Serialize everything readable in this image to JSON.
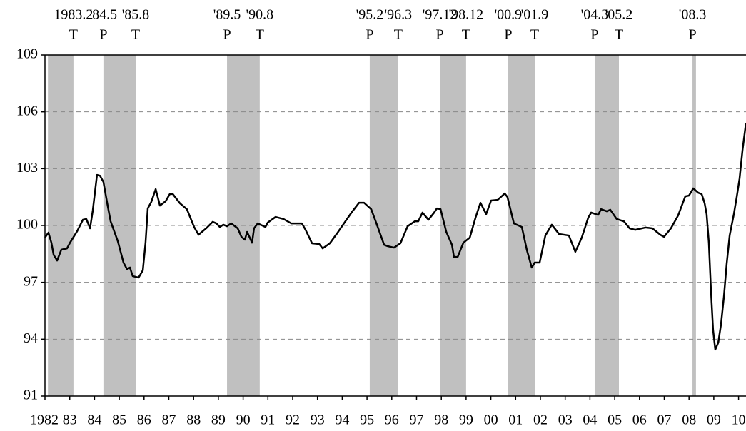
{
  "chart_data": {
    "type": "line",
    "color": "#000000",
    "band_color": "#c0c0c0",
    "grid": true,
    "xlim": [
      1982,
      2010.3
    ],
    "ylim": [
      91,
      109
    ],
    "yticks": [
      91,
      94,
      97,
      100,
      103,
      106,
      109
    ],
    "xticks": [
      1982,
      {
        "value": 1983,
        "label": "83"
      },
      {
        "value": 1984,
        "label": "84"
      },
      {
        "value": 1985,
        "label": "85"
      },
      {
        "value": 1986,
        "label": "86"
      },
      {
        "value": 1987,
        "label": "87"
      },
      {
        "value": 1988,
        "label": "88"
      },
      {
        "value": 1989,
        "label": "89"
      },
      {
        "value": 1990,
        "label": "90"
      },
      {
        "value": 1991,
        "label": "91"
      },
      {
        "value": 1992,
        "label": "92"
      },
      {
        "value": 1993,
        "label": "93"
      },
      {
        "value": 1994,
        "label": "94"
      },
      {
        "value": 1995,
        "label": "95"
      },
      {
        "value": 1996,
        "label": "96"
      },
      {
        "value": 1997,
        "label": "97"
      },
      {
        "value": 1998,
        "label": "98"
      },
      {
        "value": 1999,
        "label": "99"
      },
      {
        "value": 2000,
        "label": "00"
      },
      {
        "value": 2001,
        "label": "01"
      },
      {
        "value": 2002,
        "label": "02"
      },
      {
        "value": 2003,
        "label": "03"
      },
      {
        "value": 2004,
        "label": "04"
      },
      {
        "value": 2005,
        "label": "05"
      },
      {
        "value": 2006,
        "label": "06"
      },
      {
        "value": 2007,
        "label": "07"
      },
      {
        "value": 2008,
        "label": "08"
      },
      {
        "value": 2009,
        "label": "09"
      },
      {
        "value": 2010,
        "label": "10"
      }
    ],
    "bands": [
      {
        "start": 1982.12,
        "end": 1983.15,
        "end_label": "1983.2",
        "end_phase": "T"
      },
      {
        "start": 1984.36,
        "end": 1985.66,
        "start_label": "'84.5",
        "start_phase": "P",
        "end_label": "'85.8",
        "end_phase": "T"
      },
      {
        "start": 1989.35,
        "end": 1990.67,
        "start_label": "'89.5",
        "start_phase": "P",
        "end_label": "'90.8",
        "end_phase": "T"
      },
      {
        "start": 1995.11,
        "end": 1996.26,
        "start_label": "'95.2",
        "start_phase": "P",
        "end_label": "'96.3",
        "end_phase": "T"
      },
      {
        "start": 1997.94,
        "end": 1999.0,
        "start_label": "'97.12",
        "start_phase": "P",
        "end_label": "'98.12",
        "end_phase": "T"
      },
      {
        "start": 2000.7,
        "end": 2001.77,
        "start_label": "'00.9",
        "start_phase": "P",
        "end_label": "'01.9",
        "end_phase": "T"
      },
      {
        "start": 2004.19,
        "end": 2005.17,
        "start_label": "'04.3",
        "start_phase": "P",
        "end_label": "'05.2",
        "end_phase": "T"
      },
      {
        "start": 2008.14,
        "end": 2008.28,
        "start_label": "'08.3",
        "start_phase": "P"
      }
    ],
    "x": [
      1982.0,
      1982.14,
      1982.26,
      1982.35,
      1982.49,
      1982.66,
      1982.89,
      1983.01,
      1983.3,
      1983.53,
      1983.67,
      1983.82,
      1983.93,
      1984.1,
      1984.22,
      1984.36,
      1984.54,
      1984.65,
      1984.94,
      1985.17,
      1985.31,
      1985.43,
      1985.54,
      1985.78,
      1985.95,
      1986.06,
      1986.15,
      1986.29,
      1986.47,
      1986.64,
      1986.87,
      1987.04,
      1987.16,
      1987.45,
      1987.73,
      1988.02,
      1988.2,
      1988.51,
      1988.77,
      1988.92,
      1989.06,
      1989.2,
      1989.35,
      1989.52,
      1989.78,
      1989.93,
      1990.07,
      1990.16,
      1990.36,
      1990.44,
      1990.59,
      1990.9,
      1990.99,
      1991.31,
      1991.63,
      1991.94,
      1992.23,
      1992.37,
      1992.52,
      1992.78,
      1993.07,
      1993.21,
      1993.5,
      1993.79,
      1994.07,
      1994.39,
      1994.68,
      1994.88,
      1995.17,
      1995.4,
      1995.69,
      1995.83,
      1996.09,
      1996.35,
      1996.64,
      1996.93,
      1997.07,
      1997.24,
      1997.48,
      1997.71,
      1997.82,
      1997.97,
      1998.2,
      1998.43,
      1998.51,
      1998.66,
      1998.89,
      1999.15,
      1999.38,
      1999.58,
      1999.81,
      2000.01,
      2000.27,
      2000.56,
      2000.67,
      2000.93,
      2001.25,
      2001.45,
      2001.65,
      2001.77,
      2001.97,
      2002.2,
      2002.46,
      2002.75,
      2003.15,
      2003.41,
      2003.67,
      2003.93,
      2004.05,
      2004.33,
      2004.45,
      2004.68,
      2004.82,
      2005.08,
      2005.37,
      2005.6,
      2005.83,
      2006.24,
      2006.52,
      2006.84,
      2006.99,
      2007.27,
      2007.56,
      2007.85,
      2008.0,
      2008.17,
      2008.37,
      2008.51,
      2008.63,
      2008.71,
      2008.8,
      2008.89,
      2008.97,
      2009.06,
      2009.18,
      2009.29,
      2009.41,
      2009.52,
      2009.64,
      2009.81,
      2009.93,
      2010.04,
      2010.16,
      2010.3
    ],
    "values": [
      99.36,
      99.62,
      99.09,
      98.45,
      98.15,
      98.72,
      98.79,
      99.09,
      99.7,
      100.3,
      100.34,
      99.85,
      100.79,
      102.67,
      102.63,
      102.3,
      100.98,
      100.22,
      99.17,
      98.04,
      97.7,
      97.78,
      97.33,
      97.25,
      97.63,
      99.09,
      100.9,
      101.24,
      101.92,
      101.05,
      101.28,
      101.66,
      101.66,
      101.17,
      100.86,
      99.92,
      99.51,
      99.85,
      100.19,
      100.11,
      99.92,
      100.04,
      99.96,
      100.11,
      99.85,
      99.4,
      99.25,
      99.66,
      99.09,
      99.85,
      100.11,
      99.92,
      100.15,
      100.45,
      100.34,
      100.11,
      100.11,
      100.11,
      99.77,
      99.06,
      99.02,
      98.79,
      99.06,
      99.58,
      100.11,
      100.71,
      101.2,
      101.2,
      100.86,
      100.04,
      98.98,
      98.91,
      98.83,
      99.06,
      99.96,
      100.22,
      100.22,
      100.68,
      100.3,
      100.68,
      100.9,
      100.86,
      99.66,
      98.98,
      98.34,
      98.34,
      99.09,
      99.36,
      100.41,
      101.2,
      100.6,
      101.32,
      101.35,
      101.69,
      101.5,
      100.11,
      99.92,
      98.72,
      97.78,
      98.04,
      98.04,
      99.47,
      100.04,
      99.55,
      99.47,
      98.61,
      99.36,
      100.41,
      100.68,
      100.56,
      100.86,
      100.75,
      100.83,
      100.34,
      100.22,
      99.85,
      99.77,
      99.89,
      99.85,
      99.51,
      99.4,
      99.85,
      100.53,
      101.54,
      101.58,
      101.96,
      101.73,
      101.66,
      101.17,
      100.6,
      99.09,
      96.46,
      94.5,
      93.45,
      93.82,
      94.77,
      96.27,
      97.97,
      99.47,
      100.6,
      101.54,
      102.48,
      103.99,
      105.42
    ]
  }
}
